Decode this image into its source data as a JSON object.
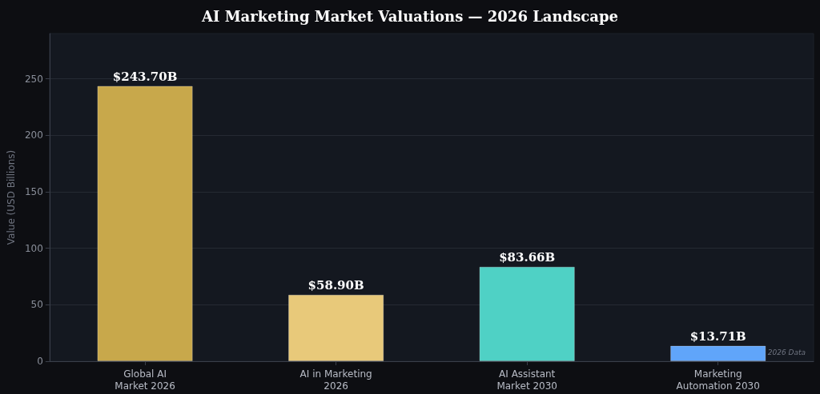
{
  "chart_data": {
    "type": "bar",
    "title": "AI Marketing Market Valuations — 2026 Landscape",
    "ylabel": "Value (USD Billions)",
    "categories": [
      "Global AI\nMarket 2026",
      "AI in Marketing\n2026",
      "AI Assistant\nMarket 2030",
      "Marketing\nAutomation 2030"
    ],
    "values": [
      243.7,
      58.9,
      83.66,
      13.71
    ],
    "colors": [
      "#c8a84b",
      "#e8c97a",
      "#4fd1c5",
      "#60a5fa"
    ],
    "value_labels": [
      "$243.70B",
      "$58.90B",
      "$83.66B",
      "$13.71B"
    ],
    "ylim": [
      0,
      290
    ],
    "yticks": [
      0,
      50,
      100,
      150,
      200,
      250
    ],
    "grid": "y",
    "annotations": [
      "2026 Data"
    ]
  }
}
